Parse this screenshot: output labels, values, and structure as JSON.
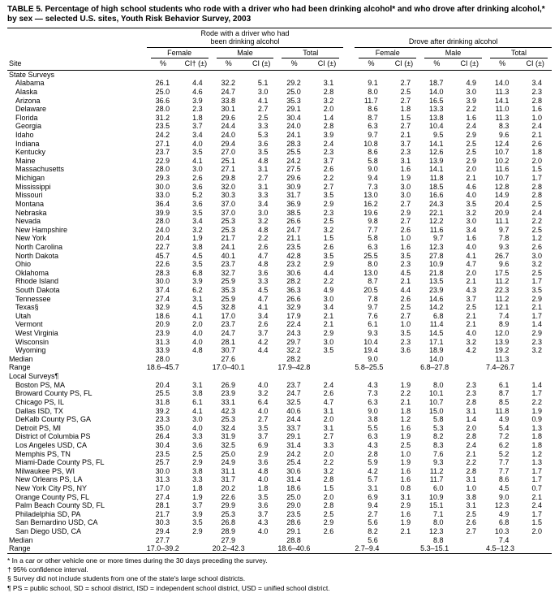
{
  "title": "TABLE 5. Percentage of high school students who rode with a driver who had been drinking alcohol* and who drove after drinking alcohol,* by sex — selected U.S. sites, Youth Risk Behavior Survey, 2003",
  "table": {
    "site_header": "Site",
    "group_headers": [
      "Rode with a driver who had been drinking alcohol",
      "Drove after drinking alcohol"
    ],
    "sex_headers": [
      "Female",
      "Male",
      "Total",
      "Female",
      "Male",
      "Total"
    ],
    "measure_headers": [
      "%",
      "CI† (±)",
      "%",
      "CI (±)",
      "%",
      "CI (±)",
      "%",
      "CI (±)",
      "%",
      "CI (±)",
      "%",
      "CI (±)"
    ],
    "sections": [
      {
        "label": "State Surveys",
        "rows": [
          {
            "site": "Alabama",
            "values": [
              "26.1",
              "4.4",
              "32.2",
              "5.1",
              "29.2",
              "3.1",
              "9.1",
              "2.7",
              "18.7",
              "4.9",
              "14.0",
              "3.4"
            ]
          },
          {
            "site": "Alaska",
            "values": [
              "25.0",
              "4.6",
              "24.7",
              "3.0",
              "25.0",
              "2.8",
              "8.0",
              "2.5",
              "14.0",
              "3.0",
              "11.3",
              "2.3"
            ]
          },
          {
            "site": "Arizona",
            "values": [
              "36.6",
              "3.9",
              "33.8",
              "4.1",
              "35.3",
              "3.2",
              "11.7",
              "2.7",
              "16.5",
              "3.9",
              "14.1",
              "2.8"
            ]
          },
          {
            "site": "Delaware",
            "values": [
              "28.0",
              "2.3",
              "30.1",
              "2.7",
              "29.1",
              "2.0",
              "8.6",
              "1.8",
              "13.3",
              "2.2",
              "11.0",
              "1.6"
            ]
          },
          {
            "site": "Florida",
            "values": [
              "31.2",
              "1.8",
              "29.6",
              "2.5",
              "30.4",
              "1.4",
              "8.7",
              "1.5",
              "13.8",
              "1.6",
              "11.3",
              "1.0"
            ]
          },
          {
            "site": "Georgia",
            "values": [
              "23.5",
              "3.7",
              "24.4",
              "3.3",
              "24.0",
              "2.8",
              "6.3",
              "2.7",
              "10.4",
              "2.4",
              "8.3",
              "2.4"
            ]
          },
          {
            "site": "Idaho",
            "values": [
              "24.2",
              "3.4",
              "24.0",
              "5.3",
              "24.1",
              "3.9",
              "9.7",
              "2.1",
              "9.5",
              "2.9",
              "9.6",
              "2.1"
            ]
          },
          {
            "site": "Indiana",
            "values": [
              "27.1",
              "4.0",
              "29.4",
              "3.6",
              "28.3",
              "2.4",
              "10.8",
              "3.7",
              "14.1",
              "2.5",
              "12.4",
              "2.6"
            ]
          },
          {
            "site": "Kentucky",
            "values": [
              "23.7",
              "3.5",
              "27.0",
              "3.5",
              "25.5",
              "2.3",
              "8.6",
              "2.3",
              "12.6",
              "2.5",
              "10.7",
              "1.8"
            ]
          },
          {
            "site": "Maine",
            "values": [
              "22.9",
              "4.1",
              "25.1",
              "4.8",
              "24.2",
              "3.7",
              "5.8",
              "3.1",
              "13.9",
              "2.9",
              "10.2",
              "2.0"
            ]
          },
          {
            "site": "Massachusetts",
            "values": [
              "28.0",
              "3.0",
              "27.1",
              "3.1",
              "27.5",
              "2.6",
              "9.0",
              "1.6",
              "14.1",
              "2.0",
              "11.6",
              "1.5"
            ]
          },
          {
            "site": "Michigan",
            "values": [
              "29.3",
              "2.6",
              "29.8",
              "2.7",
              "29.6",
              "2.2",
              "9.4",
              "1.9",
              "11.8",
              "2.1",
              "10.7",
              "1.7"
            ]
          },
          {
            "site": "Mississippi",
            "values": [
              "30.0",
              "3.6",
              "32.0",
              "3.1",
              "30.9",
              "2.7",
              "7.3",
              "3.0",
              "18.5",
              "4.6",
              "12.8",
              "2.8"
            ]
          },
          {
            "site": "Missouri",
            "values": [
              "33.0",
              "5.2",
              "30.3",
              "3.3",
              "31.7",
              "3.5",
              "13.0",
              "3.0",
              "16.6",
              "4.0",
              "14.9",
              "2.8"
            ]
          },
          {
            "site": "Montana",
            "values": [
              "36.4",
              "3.6",
              "37.0",
              "3.4",
              "36.9",
              "2.9",
              "16.2",
              "2.7",
              "24.3",
              "3.5",
              "20.4",
              "2.5"
            ]
          },
          {
            "site": "Nebraska",
            "values": [
              "39.9",
              "3.5",
              "37.0",
              "3.0",
              "38.5",
              "2.3",
              "19.6",
              "2.9",
              "22.1",
              "3.2",
              "20.9",
              "2.4"
            ]
          },
          {
            "site": "Nevada",
            "values": [
              "28.0",
              "3.4",
              "25.3",
              "3.2",
              "26.6",
              "2.5",
              "9.8",
              "2.7",
              "12.2",
              "3.0",
              "11.1",
              "2.2"
            ]
          },
          {
            "site": "New Hampshire",
            "values": [
              "24.0",
              "3.2",
              "25.3",
              "4.8",
              "24.7",
              "3.2",
              "7.7",
              "2.6",
              "11.6",
              "3.4",
              "9.7",
              "2.5"
            ]
          },
          {
            "site": "New York",
            "values": [
              "20.4",
              "1.9",
              "21.7",
              "2.2",
              "21.1",
              "1.5",
              "5.8",
              "1.0",
              "9.7",
              "1.6",
              "7.8",
              "1.2"
            ]
          },
          {
            "site": "North Carolina",
            "values": [
              "22.7",
              "3.8",
              "24.1",
              "2.6",
              "23.5",
              "2.6",
              "6.3",
              "1.6",
              "12.3",
              "4.0",
              "9.3",
              "2.6"
            ]
          },
          {
            "site": "North Dakota",
            "values": [
              "45.7",
              "4.5",
              "40.1",
              "4.7",
              "42.8",
              "3.5",
              "25.5",
              "3.5",
              "27.8",
              "4.1",
              "26.7",
              "3.0"
            ]
          },
          {
            "site": "Ohio",
            "values": [
              "22.6",
              "3.5",
              "23.7",
              "4.8",
              "23.2",
              "2.9",
              "8.0",
              "2.3",
              "10.9",
              "4.7",
              "9.6",
              "3.2"
            ]
          },
          {
            "site": "Oklahoma",
            "values": [
              "28.3",
              "6.8",
              "32.7",
              "3.6",
              "30.6",
              "4.4",
              "13.0",
              "4.5",
              "21.8",
              "2.0",
              "17.5",
              "2.5"
            ]
          },
          {
            "site": "Rhode Island",
            "values": [
              "30.0",
              "3.9",
              "25.9",
              "3.3",
              "28.2",
              "2.2",
              "8.7",
              "2.1",
              "13.5",
              "2.1",
              "11.2",
              "1.7"
            ]
          },
          {
            "site": "South Dakota",
            "values": [
              "37.4",
              "6.2",
              "35.3",
              "4.5",
              "36.3",
              "4.9",
              "20.5",
              "4.4",
              "23.9",
              "4.3",
              "22.3",
              "3.5"
            ]
          },
          {
            "site": "Tennessee",
            "values": [
              "27.4",
              "3.1",
              "25.9",
              "4.7",
              "26.6",
              "3.0",
              "7.8",
              "2.6",
              "14.6",
              "3.7",
              "11.2",
              "2.9"
            ]
          },
          {
            "site": "Texas§",
            "values": [
              "32.9",
              "4.5",
              "32.8",
              "4.1",
              "32.9",
              "3.4",
              "9.7",
              "2.5",
              "14.2",
              "2.5",
              "12.1",
              "2.1"
            ]
          },
          {
            "site": "Utah",
            "values": [
              "18.6",
              "4.1",
              "17.0",
              "3.4",
              "17.9",
              "2.1",
              "7.6",
              "2.7",
              "6.8",
              "2.1",
              "7.4",
              "1.7"
            ]
          },
          {
            "site": "Vermont",
            "values": [
              "20.9",
              "2.0",
              "23.7",
              "2.6",
              "22.4",
              "2.1",
              "6.1",
              "1.0",
              "11.4",
              "2.1",
              "8.9",
              "1.4"
            ]
          },
          {
            "site": "West Virginia",
            "values": [
              "23.9",
              "4.0",
              "24.7",
              "3.7",
              "24.3",
              "2.9",
              "9.3",
              "3.5",
              "14.5",
              "4.0",
              "12.0",
              "2.9"
            ]
          },
          {
            "site": "Wisconsin",
            "values": [
              "31.3",
              "4.0",
              "28.1",
              "4.2",
              "29.7",
              "3.0",
              "10.4",
              "2.3",
              "17.1",
              "3.2",
              "13.9",
              "2.3"
            ]
          },
          {
            "site": "Wyoming",
            "values": [
              "33.9",
              "4.8",
              "30.7",
              "4.4",
              "32.2",
              "3.5",
              "19.4",
              "3.6",
              "18.9",
              "4.2",
              "19.2",
              "3.2"
            ]
          }
        ],
        "summary": [
          {
            "label": "Median",
            "values": [
              "28.0",
              "27.6",
              "28.2",
              "9.0",
              "14.0",
              "11.3"
            ]
          },
          {
            "label": "Range",
            "values": [
              "18.6–45.7",
              "17.0–40.1",
              "17.9–42.8",
              "5.8–25.5",
              "6.8–27.8",
              "7.4–26.7"
            ]
          }
        ]
      },
      {
        "label": "Local Surveys¶",
        "rows": [
          {
            "site": "Boston PS, MA",
            "values": [
              "20.4",
              "3.1",
              "26.9",
              "4.0",
              "23.7",
              "2.4",
              "4.3",
              "1.9",
              "8.0",
              "2.3",
              "6.1",
              "1.4"
            ]
          },
          {
            "site": "Broward County PS, FL",
            "values": [
              "25.5",
              "3.8",
              "23.9",
              "3.2",
              "24.7",
              "2.6",
              "7.3",
              "2.2",
              "10.1",
              "2.3",
              "8.7",
              "1.7"
            ]
          },
          {
            "site": "Chicago PS, IL",
            "values": [
              "31.8",
              "6.1",
              "33.1",
              "6.4",
              "32.5",
              "4.7",
              "6.3",
              "2.1",
              "10.7",
              "2.8",
              "8.5",
              "2.2"
            ]
          },
          {
            "site": "Dallas ISD, TX",
            "values": [
              "39.2",
              "4.1",
              "42.3",
              "4.0",
              "40.6",
              "3.1",
              "9.0",
              "1.8",
              "15.0",
              "3.1",
              "11.8",
              "1.9"
            ]
          },
          {
            "site": "DeKalb County PS, GA",
            "values": [
              "23.3",
              "3.0",
              "25.3",
              "2.7",
              "24.4",
              "2.0",
              "3.8",
              "1.2",
              "5.8",
              "1.4",
              "4.9",
              "0.9"
            ]
          },
          {
            "site": "Detroit PS, MI",
            "values": [
              "35.0",
              "4.0",
              "32.4",
              "3.5",
              "33.7",
              "3.1",
              "5.5",
              "1.6",
              "5.3",
              "2.0",
              "5.4",
              "1.3"
            ]
          },
          {
            "site": "District of Columbia PS",
            "values": [
              "26.4",
              "3.3",
              "31.9",
              "3.7",
              "29.1",
              "2.7",
              "6.3",
              "1.9",
              "8.2",
              "2.8",
              "7.2",
              "1.8"
            ]
          },
          {
            "site": "Los Angeles USD, CA",
            "values": [
              "30.4",
              "3.6",
              "32.5",
              "6.9",
              "31.4",
              "3.3",
              "4.3",
              "2.5",
              "8.3",
              "2.4",
              "6.2",
              "1.8"
            ]
          },
          {
            "site": "Memphis PS, TN",
            "values": [
              "23.5",
              "2.5",
              "25.0",
              "2.9",
              "24.2",
              "2.0",
              "2.8",
              "1.0",
              "7.6",
              "2.1",
              "5.2",
              "1.2"
            ]
          },
          {
            "site": "Miami-Dade County PS, FL",
            "values": [
              "25.7",
              "2.9",
              "24.9",
              "3.6",
              "25.4",
              "2.2",
              "5.9",
              "1.9",
              "9.3",
              "2.2",
              "7.7",
              "1.3"
            ]
          },
          {
            "site": "Milwaukee PS, WI",
            "values": [
              "30.0",
              "3.8",
              "31.1",
              "4.8",
              "30.6",
              "3.2",
              "4.2",
              "1.6",
              "11.2",
              "2.8",
              "7.7",
              "1.7"
            ]
          },
          {
            "site": "New Orleans PS, LA",
            "values": [
              "31.3",
              "3.3",
              "31.7",
              "4.0",
              "31.4",
              "2.8",
              "5.7",
              "1.6",
              "11.7",
              "3.1",
              "8.6",
              "1.7"
            ]
          },
          {
            "site": "New York City PS, NY",
            "values": [
              "17.0",
              "1.8",
              "20.2",
              "1.8",
              "18.6",
              "1.5",
              "3.1",
              "0.8",
              "6.0",
              "1.0",
              "4.5",
              "0.7"
            ]
          },
          {
            "site": "Orange County PS, FL",
            "values": [
              "27.4",
              "1.9",
              "22.6",
              "3.5",
              "25.0",
              "2.0",
              "6.9",
              "3.1",
              "10.9",
              "3.8",
              "9.0",
              "2.1"
            ]
          },
          {
            "site": "Palm Beach County SD, FL",
            "values": [
              "28.1",
              "3.7",
              "29.9",
              "3.6",
              "29.0",
              "2.8",
              "9.4",
              "2.9",
              "15.1",
              "3.1",
              "12.3",
              "2.4"
            ]
          },
          {
            "site": "Philadelphia SD, PA",
            "values": [
              "21.7",
              "3.9",
              "25.3",
              "3.7",
              "23.5",
              "2.5",
              "2.7",
              "1.6",
              "7.1",
              "2.5",
              "4.9",
              "1.7"
            ]
          },
          {
            "site": "San Bernardino USD, CA",
            "values": [
              "30.3",
              "3.5",
              "26.8",
              "4.3",
              "28.6",
              "2.9",
              "5.6",
              "1.9",
              "8.0",
              "2.6",
              "6.8",
              "1.5"
            ]
          },
          {
            "site": "San Diego USD, CA",
            "values": [
              "29.4",
              "2.9",
              "28.9",
              "4.0",
              "29.1",
              "2.6",
              "8.2",
              "2.1",
              "12.3",
              "2.7",
              "10.3",
              "2.0"
            ]
          }
        ],
        "summary": [
          {
            "label": "Median",
            "values": [
              "27.7",
              "27.9",
              "28.8",
              "5.6",
              "8.8",
              "7.4"
            ]
          },
          {
            "label": "Range",
            "values": [
              "17.0–39.2",
              "20.2–42.3",
              "18.6–40.6",
              "2.7–9.4",
              "5.3–15.1",
              "4.5–12.3"
            ]
          }
        ]
      }
    ]
  },
  "footnotes": [
    "* In a car or other vehicle one or more times during the 30 days preceding the survey.",
    "† 95% confidence interval.",
    "§ Survey did not include students from one of the state's large school districts.",
    "¶ PS = public school, SD = school district, ISD = independent school district, USD = unified school district."
  ]
}
